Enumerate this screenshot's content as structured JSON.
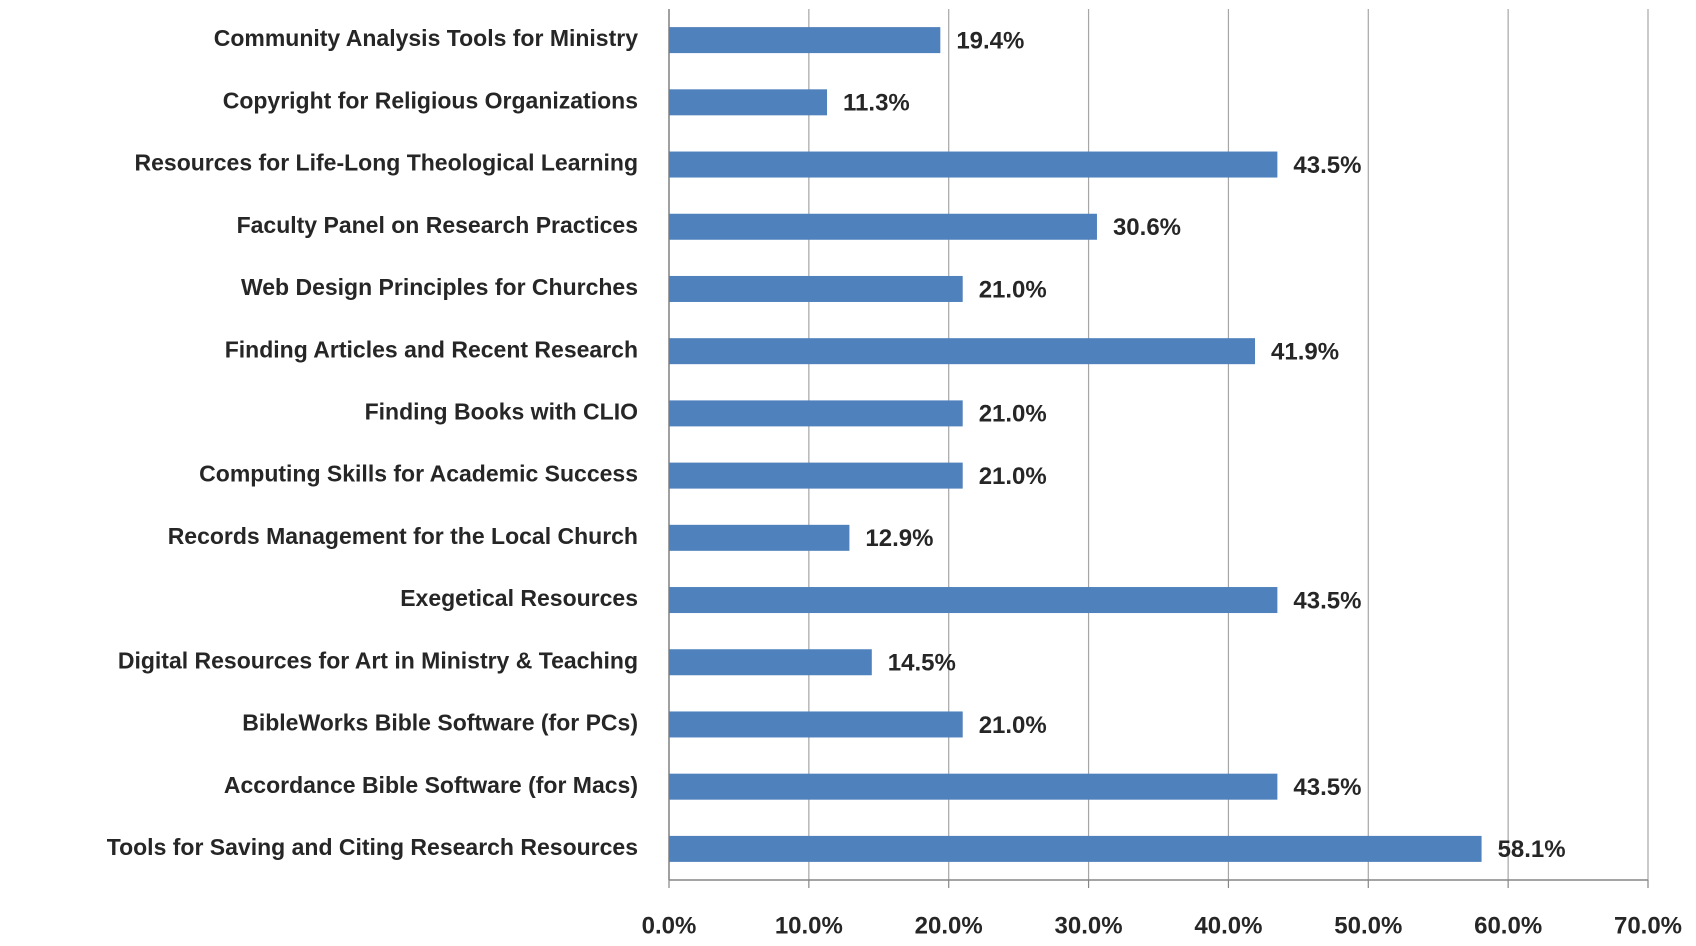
{
  "chart_data": {
    "type": "bar",
    "orientation": "horizontal",
    "categories": [
      "Community Analysis Tools for Ministry",
      "Copyright for Religious Organizations",
      "Resources for Life-Long Theological Learning",
      "Faculty Panel on Research Practices",
      "Web Design Principles for Churches",
      "Finding Articles and Recent Research",
      "Finding Books with CLIO",
      "Computing Skills for Academic Success",
      "Records Management for the Local Church",
      "Exegetical Resources",
      "Digital Resources for Art in Ministry & Teaching",
      "BibleWorks Bible Software (for PCs)",
      "Accordance Bible Software (for Macs)",
      "Tools for Saving and Citing Research Resources"
    ],
    "values": [
      19.4,
      11.3,
      43.5,
      30.6,
      21.0,
      41.9,
      21.0,
      21.0,
      12.9,
      43.5,
      14.5,
      21.0,
      43.5,
      58.1
    ],
    "value_labels": [
      "19.4%",
      "11.3%",
      "43.5%",
      "30.6%",
      "21.0%",
      "41.9%",
      "21.0%",
      "21.0%",
      "12.9%",
      "43.5%",
      "14.5%",
      "21.0%",
      "43.5%",
      "58.1%"
    ],
    "color": "#4f81bd",
    "xlim": [
      0,
      70
    ],
    "xticks": [
      {
        "value": 0,
        "label": "0.0%"
      },
      {
        "value": 10,
        "label": "10.0%"
      },
      {
        "value": 20,
        "label": "20.0%"
      },
      {
        "value": 30,
        "label": "30.0%"
      },
      {
        "value": 40,
        "label": "40.0%"
      },
      {
        "value": 50,
        "label": "50.0%"
      },
      {
        "value": 60,
        "label": "60.0%"
      },
      {
        "value": 70,
        "label": "70.0%"
      }
    ],
    "grid": true
  }
}
